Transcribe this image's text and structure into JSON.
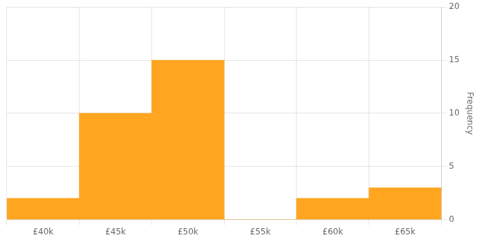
{
  "chart_data": {
    "type": "histogram",
    "bins": [
      37500,
      42500,
      47500,
      52500,
      57500,
      62500,
      67500
    ],
    "values": [
      2,
      10,
      15,
      0,
      2,
      3
    ],
    "color": "#FFA520",
    "xlim": [
      37500,
      67500
    ],
    "xticks": [
      {
        "value": 40000,
        "label": "£40k"
      },
      {
        "value": 45000,
        "label": "£45k"
      },
      {
        "value": 50000,
        "label": "£50k"
      },
      {
        "value": 55000,
        "label": "£55k"
      },
      {
        "value": 60000,
        "label": "£60k"
      },
      {
        "value": 65000,
        "label": "£65k"
      }
    ],
    "ylim": [
      0,
      20
    ],
    "yticks": [
      0,
      5,
      10,
      15,
      20
    ],
    "ylabel": "Frequency",
    "grid": true
  }
}
